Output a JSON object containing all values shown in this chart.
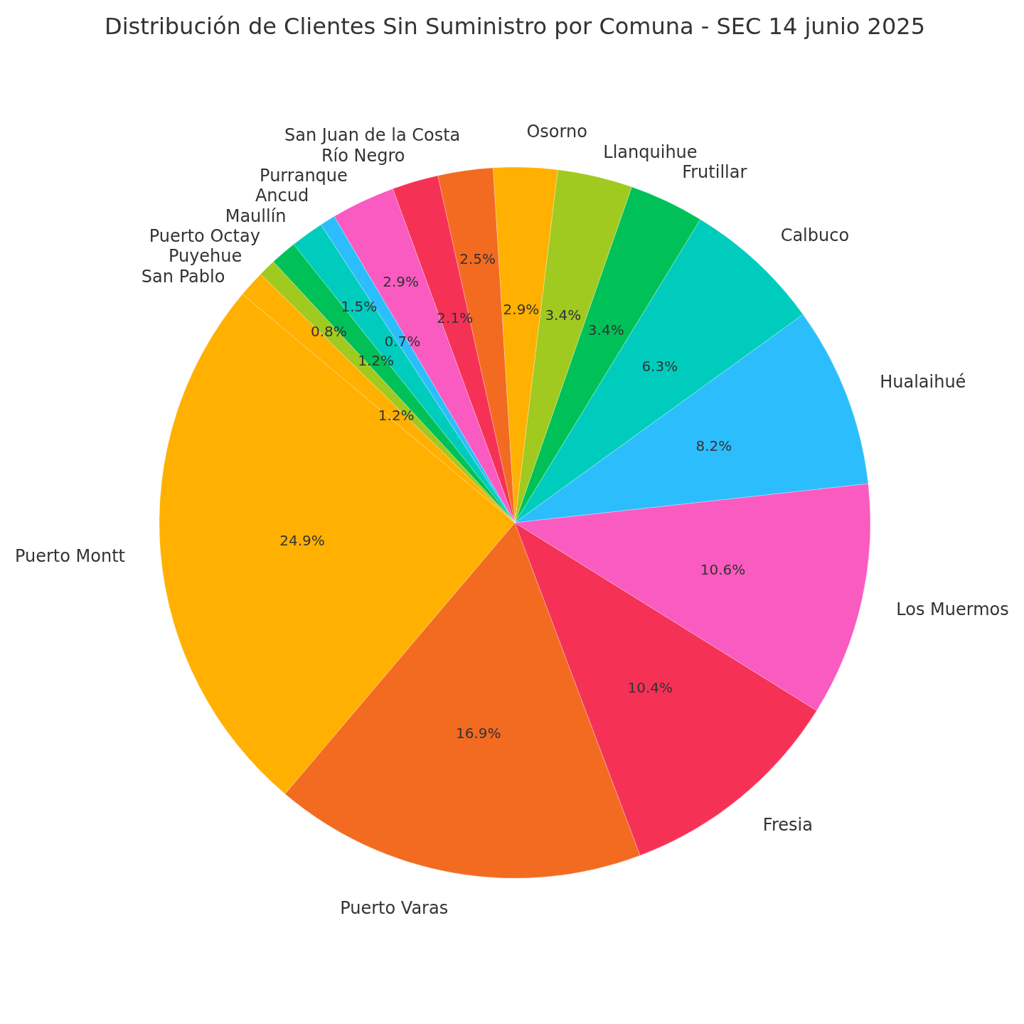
{
  "chart_data": {
    "type": "pie",
    "title": "Distribución de Clientes Sin Suministro por Comuna - SEC 14 junio 2025",
    "categories": [
      "Puerto Montt",
      "Puerto Varas",
      "Fresia",
      "Los Muermos",
      "Hualaihué",
      "Calbuco",
      "Frutillar",
      "Llanquihue",
      "Osorno",
      "San Juan de la Costa",
      "Río Negro",
      "Purranque",
      "Ancud",
      "Maullín",
      "Puerto Octay",
      "Puyehue",
      "San Pablo"
    ],
    "values": [
      24.9,
      16.9,
      10.4,
      10.6,
      8.2,
      6.3,
      3.4,
      3.4,
      2.9,
      2.5,
      2.1,
      2.9,
      0.7,
      1.5,
      1.2,
      0.8,
      1.2
    ],
    "colors": [
      "#ffb000",
      "#f26b21",
      "#f53256",
      "#f95bc0",
      "#2cbefc",
      "#00ccbe",
      "#00c157",
      "#a0ca1f",
      "#ffb000",
      "#f26b21",
      "#f53256",
      "#f95bc0",
      "#2cbefc",
      "#00ccbe",
      "#00c157",
      "#a0ca1f",
      "#ffb000"
    ],
    "value_labels": [
      "24.9%",
      "16.9%",
      "10.4%",
      "10.6%",
      "8.2%",
      "6.3%",
      "3.4%",
      "3.4%",
      "2.9%",
      "2.5%",
      "2.1%",
      "2.9%",
      "0.7%",
      "1.5%",
      "1.2%",
      "0.8%",
      "1.2%"
    ]
  }
}
